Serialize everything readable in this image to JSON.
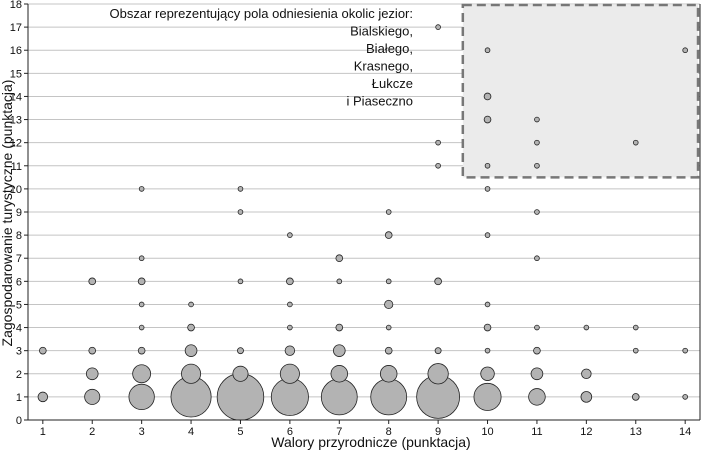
{
  "chart_data": {
    "type": "scatter",
    "subtype": "bubble",
    "xlabel": "Walory przyrodnicze (punktacja)",
    "ylabel": "Zagospodarowanie turystyczne (punktacja)",
    "xlim": [
      0.7,
      14.3
    ],
    "ylim": [
      0,
      18
    ],
    "x_ticks": [
      1,
      2,
      3,
      4,
      5,
      6,
      7,
      8,
      9,
      10,
      11,
      12,
      13,
      14
    ],
    "y_ticks": [
      0,
      1,
      2,
      3,
      4,
      5,
      6,
      7,
      8,
      9,
      10,
      11,
      12,
      13,
      14,
      15,
      16,
      17,
      18
    ],
    "grid": "horizontal",
    "marker_color": "#b3b3b3",
    "annotation": {
      "lines": [
        "Obszar reprezentujący pola odniesienia okolic jezior:",
        "Bialskiego,",
        "Białego,",
        "Krasnego,",
        "Łukcze",
        "i Piaseczno"
      ],
      "region": {
        "x": [
          9.5,
          14.3
        ],
        "y": [
          10.5,
          18
        ]
      },
      "border_color": "#777777",
      "fill_color": "#ebebeb"
    },
    "points": [
      {
        "x": 1,
        "y": 3,
        "n": 1
      },
      {
        "x": 1,
        "y": 1,
        "n": 2
      },
      {
        "x": 2,
        "y": 6,
        "n": 1
      },
      {
        "x": 2,
        "y": 3,
        "n": 1
      },
      {
        "x": 2,
        "y": 2,
        "n": 3
      },
      {
        "x": 2,
        "y": 1,
        "n": 5
      },
      {
        "x": 3,
        "y": 10,
        "n": 0.5
      },
      {
        "x": 3,
        "y": 7,
        "n": 0.5
      },
      {
        "x": 3,
        "y": 6,
        "n": 1
      },
      {
        "x": 3,
        "y": 5,
        "n": 0.5
      },
      {
        "x": 3,
        "y": 4,
        "n": 0.5
      },
      {
        "x": 3,
        "y": 3,
        "n": 1
      },
      {
        "x": 3,
        "y": 2,
        "n": 7
      },
      {
        "x": 3,
        "y": 1,
        "n": 14
      },
      {
        "x": 4,
        "y": 5,
        "n": 0.5
      },
      {
        "x": 4,
        "y": 4,
        "n": 1
      },
      {
        "x": 4,
        "y": 3,
        "n": 3
      },
      {
        "x": 4,
        "y": 2,
        "n": 8
      },
      {
        "x": 4,
        "y": 1,
        "n": 35
      },
      {
        "x": 5,
        "y": 10,
        "n": 0.5
      },
      {
        "x": 5,
        "y": 9,
        "n": 0.5
      },
      {
        "x": 5,
        "y": 6,
        "n": 0.5
      },
      {
        "x": 5,
        "y": 3,
        "n": 0.8
      },
      {
        "x": 5,
        "y": 2,
        "n": 5
      },
      {
        "x": 5,
        "y": 1,
        "n": 47
      },
      {
        "x": 6,
        "y": 8,
        "n": 0.5
      },
      {
        "x": 6,
        "y": 6,
        "n": 1
      },
      {
        "x": 6,
        "y": 5,
        "n": 0.5
      },
      {
        "x": 6,
        "y": 4,
        "n": 0.5
      },
      {
        "x": 6,
        "y": 3,
        "n": 2
      },
      {
        "x": 6,
        "y": 2,
        "n": 8
      },
      {
        "x": 6,
        "y": 1,
        "n": 30
      },
      {
        "x": 7,
        "y": 7,
        "n": 1
      },
      {
        "x": 7,
        "y": 6,
        "n": 0.5
      },
      {
        "x": 7,
        "y": 4,
        "n": 1
      },
      {
        "x": 7,
        "y": 3,
        "n": 3
      },
      {
        "x": 7,
        "y": 2,
        "n": 6
      },
      {
        "x": 7,
        "y": 1,
        "n": 28
      },
      {
        "x": 8,
        "y": 9,
        "n": 0.5
      },
      {
        "x": 8,
        "y": 8,
        "n": 1
      },
      {
        "x": 8,
        "y": 6,
        "n": 0.5
      },
      {
        "x": 8,
        "y": 5,
        "n": 1.5
      },
      {
        "x": 8,
        "y": 4,
        "n": 0.5
      },
      {
        "x": 8,
        "y": 3,
        "n": 1
      },
      {
        "x": 8,
        "y": 2,
        "n": 6
      },
      {
        "x": 8,
        "y": 1,
        "n": 28
      },
      {
        "x": 9,
        "y": 17,
        "n": 0.5
      },
      {
        "x": 9,
        "y": 12,
        "n": 0.5
      },
      {
        "x": 9,
        "y": 11,
        "n": 0.5
      },
      {
        "x": 9,
        "y": 6,
        "n": 1
      },
      {
        "x": 9,
        "y": 3,
        "n": 0.8
      },
      {
        "x": 9,
        "y": 2,
        "n": 9
      },
      {
        "x": 9,
        "y": 1,
        "n": 40
      },
      {
        "x": 10,
        "y": 16,
        "n": 0.5
      },
      {
        "x": 10,
        "y": 14,
        "n": 1
      },
      {
        "x": 10,
        "y": 13,
        "n": 1
      },
      {
        "x": 10,
        "y": 11,
        "n": 0.5
      },
      {
        "x": 10,
        "y": 10,
        "n": 0.5
      },
      {
        "x": 10,
        "y": 8,
        "n": 0.5
      },
      {
        "x": 10,
        "y": 5,
        "n": 0.5
      },
      {
        "x": 10,
        "y": 4,
        "n": 1
      },
      {
        "x": 10,
        "y": 3,
        "n": 0.5
      },
      {
        "x": 10,
        "y": 2,
        "n": 4
      },
      {
        "x": 10,
        "y": 1,
        "n": 16
      },
      {
        "x": 11,
        "y": 13,
        "n": 0.5
      },
      {
        "x": 11,
        "y": 12,
        "n": 0.5
      },
      {
        "x": 11,
        "y": 11,
        "n": 0.5
      },
      {
        "x": 11,
        "y": 9,
        "n": 0.5
      },
      {
        "x": 11,
        "y": 7,
        "n": 0.5
      },
      {
        "x": 11,
        "y": 4,
        "n": 0.5
      },
      {
        "x": 11,
        "y": 3,
        "n": 1
      },
      {
        "x": 11,
        "y": 2,
        "n": 3
      },
      {
        "x": 11,
        "y": 1,
        "n": 6
      },
      {
        "x": 12,
        "y": 4,
        "n": 0.5
      },
      {
        "x": 12,
        "y": 2,
        "n": 2
      },
      {
        "x": 12,
        "y": 1,
        "n": 2.5
      },
      {
        "x": 13,
        "y": 12,
        "n": 0.5
      },
      {
        "x": 13,
        "y": 4,
        "n": 0.5
      },
      {
        "x": 13,
        "y": 3,
        "n": 0.5
      },
      {
        "x": 13,
        "y": 1,
        "n": 1
      },
      {
        "x": 14,
        "y": 16,
        "n": 0.5
      },
      {
        "x": 14,
        "y": 3,
        "n": 0.5
      },
      {
        "x": 14,
        "y": 1,
        "n": 0.5
      }
    ]
  }
}
